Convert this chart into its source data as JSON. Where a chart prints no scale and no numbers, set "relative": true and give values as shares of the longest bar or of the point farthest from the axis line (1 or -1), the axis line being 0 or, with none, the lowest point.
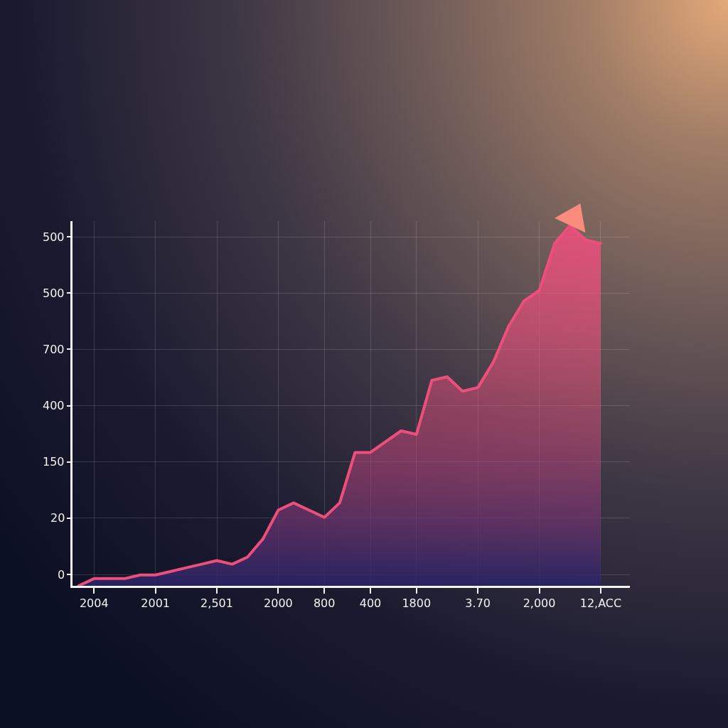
{
  "chart_data": {
    "type": "area",
    "categories": [
      null,
      "2004",
      null,
      null,
      null,
      "2001",
      null,
      null,
      null,
      "2,501",
      null,
      null,
      null,
      "2000",
      null,
      null,
      "800",
      null,
      null,
      "400",
      null,
      null,
      "1800",
      null,
      null,
      null,
      "3.70",
      null,
      null,
      null,
      "2,000",
      null,
      null,
      null,
      "12,ACC"
    ],
    "values": [
      0.0,
      0.02,
      0.02,
      0.02,
      0.03,
      0.03,
      0.04,
      0.05,
      0.06,
      0.07,
      0.06,
      0.08,
      0.13,
      0.21,
      0.23,
      0.21,
      0.19,
      0.23,
      0.37,
      0.37,
      0.4,
      0.43,
      0.42,
      0.57,
      0.58,
      0.54,
      0.55,
      0.62,
      0.72,
      0.79,
      0.82,
      0.95,
      1.0,
      0.96,
      0.95
    ],
    "relative": true,
    "color": "#ec4f7c",
    "annotations": [
      "500",
      "500",
      "700",
      "400",
      "150",
      "20",
      "0"
    ],
    "grid": true
  }
}
